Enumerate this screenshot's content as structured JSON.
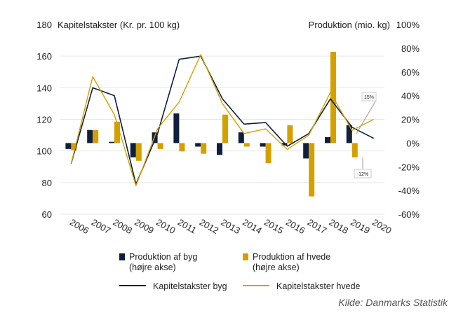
{
  "chart_data": {
    "type": "bar+line",
    "left_axis_title": "Kapitelstakster (Kr. pr. 100 kg)",
    "right_axis_title": "Produktion (mio. kg)",
    "categories": [
      "2006",
      "2007",
      "2008",
      "2009",
      "2010",
      "2011",
      "2012",
      "2013",
      "2014",
      "2015",
      "2016",
      "2017",
      "2018",
      "2019",
      "2020"
    ],
    "left_ylim": [
      60,
      180
    ],
    "left_ticks": [
      "60",
      "80",
      "100",
      "120",
      "140",
      "160",
      "180"
    ],
    "right_ylim": [
      -60,
      100
    ],
    "right_ticks": [
      "-60%",
      "-40%",
      "-20%",
      "0%",
      "20%",
      "40%",
      "60%",
      "80%",
      "100%"
    ],
    "bar_series": [
      {
        "name": "Produktion af byg",
        "legend_note": "(højre akse)",
        "color": "#0f1f3d",
        "values": [
          -5,
          11,
          1,
          -12,
          9,
          25,
          -3,
          -10,
          9,
          -3,
          -2,
          -13,
          5,
          15,
          null
        ]
      },
      {
        "name": "Produktion af hvede",
        "legend_note": "(højre akse)",
        "color": "#d4a000",
        "values": [
          -6,
          11,
          18,
          -15,
          -5,
          -7,
          -9,
          24,
          -3,
          -17,
          15,
          -45,
          77,
          -12,
          null
        ]
      }
    ],
    "line_series": [
      {
        "name": "Kapitelstakster byg",
        "color": "#0f1f3d",
        "values": [
          92,
          140,
          135,
          79,
          111,
          158,
          160,
          133,
          117,
          118,
          103,
          111,
          133,
          115,
          108
        ]
      },
      {
        "name": "Kapitelstakster hvede",
        "color": "#d4a000",
        "values": [
          92,
          147,
          123,
          78,
          114,
          131,
          161,
          130,
          111,
          114,
          101,
          110,
          137,
          113,
          120
        ]
      }
    ],
    "annotations": [
      "15%",
      "-12%"
    ],
    "grid": "horizontal"
  },
  "source": "Kilde: Danmarks Statistik"
}
